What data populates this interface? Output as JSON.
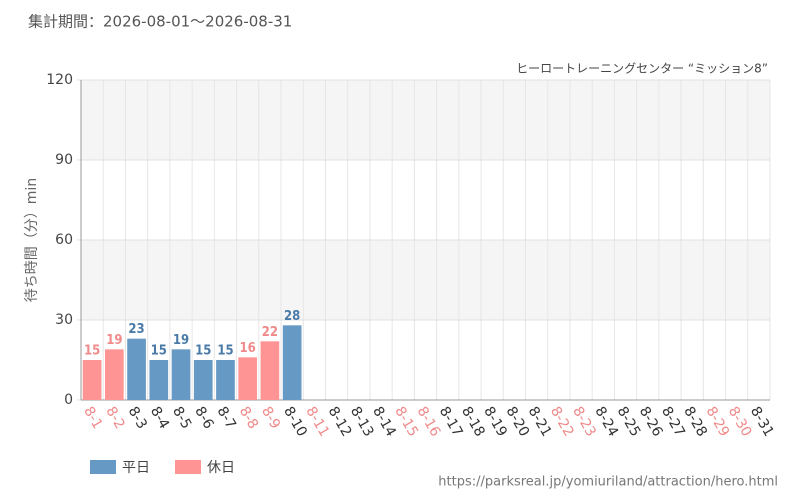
{
  "chart_data": {
    "type": "bar",
    "title": "集計期間：2026-08-01～2026-08-31",
    "subtitle": "ヒーロートレーニングセンター “ミッション8”",
    "y_label": "待ち時間（分）min",
    "source": "https://parksreal.jp/yomiuriland/attraction/hero.html",
    "categories": [
      "8-1",
      "8-2",
      "8-3",
      "8-4",
      "8-5",
      "8-6",
      "8-7",
      "8-8",
      "8-9",
      "8-10",
      "8-11",
      "8-12",
      "8-13",
      "8-14",
      "8-15",
      "8-16",
      "8-17",
      "8-18",
      "8-19",
      "8-20",
      "8-21",
      "8-22",
      "8-23",
      "8-24",
      "8-25",
      "8-26",
      "8-27",
      "8-28",
      "8-29",
      "8-30",
      "8-31"
    ],
    "category_label_colors": [
      "#f08a8a",
      "#f08a8a",
      "#333333",
      "#333333",
      "#333333",
      "#333333",
      "#333333",
      "#f08a8a",
      "#f08a8a",
      "#333333",
      "#f08a8a",
      "#333333",
      "#333333",
      "#333333",
      "#f08a8a",
      "#f08a8a",
      "#333333",
      "#333333",
      "#333333",
      "#333333",
      "#333333",
      "#f08a8a",
      "#f08a8a",
      "#333333",
      "#333333",
      "#333333",
      "#333333",
      "#333333",
      "#f08a8a",
      "#f08a8a",
      "#333333"
    ],
    "series": [
      {
        "name": "平日",
        "color": "#6699c4",
        "label_color": "#4a7ba8",
        "values": [
          null,
          null,
          23,
          15,
          19,
          15,
          15,
          null,
          null,
          28,
          null,
          null,
          null,
          null,
          null,
          null,
          null,
          null,
          null,
          null,
          null,
          null,
          null,
          null,
          null,
          null,
          null,
          null,
          null,
          null,
          null
        ]
      },
      {
        "name": "休日",
        "color": "#ff9494",
        "label_color": "#f08a8a",
        "values": [
          15,
          19,
          null,
          null,
          null,
          null,
          null,
          16,
          22,
          null,
          null,
          null,
          null,
          null,
          null,
          null,
          null,
          null,
          null,
          null,
          null,
          null,
          null,
          null,
          null,
          null,
          null,
          null,
          null,
          null,
          null
        ]
      }
    ],
    "ylim": [
      0,
      120
    ],
    "yticks": [
      0,
      30,
      60,
      90,
      120
    ],
    "grid": true
  }
}
